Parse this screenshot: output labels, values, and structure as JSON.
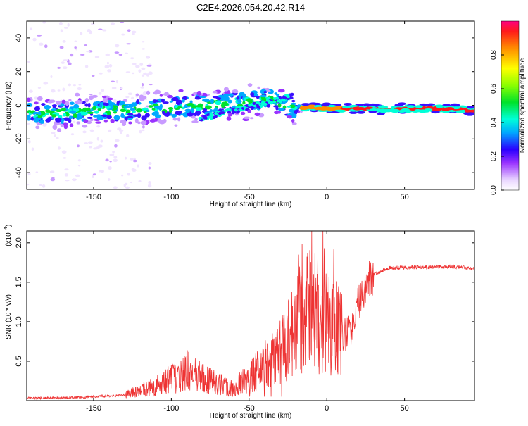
{
  "chart_data": [
    {
      "type": "heatmap",
      "title": "C2E4.2026.054.20.42.R14",
      "xlabel": "Height of straight line (km)",
      "ylabel": "Frequency (Hz)",
      "xlim": [
        -193,
        95
      ],
      "ylim": [
        -50,
        50
      ],
      "x_ticks": [
        -150,
        -100,
        -50,
        0,
        50
      ],
      "x_tick_labels": [
        "-150",
        "-100",
        "-50",
        "0",
        "50"
      ],
      "y_ticks": [
        -40,
        -20,
        0,
        20,
        40
      ],
      "y_tick_labels": [
        "-40",
        "-20",
        "0",
        "20",
        "40"
      ],
      "ridge": {
        "description": "dominant spectral ridge (frequency in Hz vs height in km)",
        "x": [
          -190,
          -170,
          -150,
          -130,
          -110,
          -90,
          -70,
          -50,
          -35,
          -20,
          -10,
          0,
          20,
          50,
          80,
          92
        ],
        "y": [
          -5,
          -5,
          -3,
          -3,
          -2,
          -1,
          1,
          2,
          3,
          -2,
          -1,
          -2,
          -2,
          -2,
          -2,
          -3
        ]
      },
      "colorbar": {
        "label": "Normalized spectral amplitude",
        "range": [
          0.0,
          1.0
        ],
        "ticks": [
          0.0,
          0.2,
          0.4,
          0.6,
          0.8
        ],
        "tick_labels": [
          "0.0",
          "0.2",
          "0.4",
          "0.6",
          "0.8"
        ]
      }
    },
    {
      "type": "line",
      "xlabel": "Height of straight line (km)",
      "ylabel": "SNR (10 * v/v)",
      "y_scale_note": "(x10",
      "y_scale_exp": "4",
      "xlim": [
        -193,
        95
      ],
      "ylim": [
        0,
        2.15
      ],
      "x_ticks": [
        -150,
        -100,
        -50,
        0,
        50
      ],
      "x_tick_labels": [
        "-150",
        "-100",
        "-50",
        "0",
        "50"
      ],
      "y_ticks": [
        0.5,
        1.0,
        1.5,
        2.0
      ],
      "y_tick_labels": [
        "0.5",
        "1.0",
        "1.5",
        "2.0"
      ],
      "series": [
        {
          "name": "SNR",
          "color": "#ee3333",
          "envelope_x": [
            -193,
            -160,
            -130,
            -110,
            -100,
            -90,
            -80,
            -70,
            -60,
            -50,
            -40,
            -30,
            -20,
            -15,
            -10,
            -5,
            0,
            5,
            10,
            15,
            20,
            25,
            30,
            40,
            60,
            80,
            95
          ],
          "envelope_y": [
            0.03,
            0.04,
            0.07,
            0.18,
            0.28,
            0.38,
            0.28,
            0.22,
            0.15,
            0.3,
            0.45,
            0.6,
            0.9,
            1.1,
            1.3,
            1.0,
            1.0,
            1.0,
            0.8,
            0.9,
            1.2,
            1.45,
            1.6,
            1.68,
            1.69,
            1.7,
            1.67
          ]
        }
      ]
    }
  ]
}
